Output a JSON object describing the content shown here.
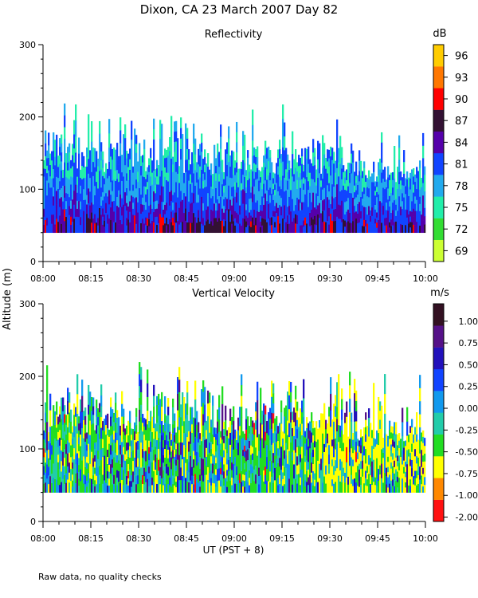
{
  "title": "Dixon, CA 23 March 2007  Day  82",
  "footer_note": "Raw data, no quality checks",
  "shared_ylabel": "Altitude (m)",
  "shared_xlabel": "UT  (PST + 8)",
  "chart_data": [
    {
      "type": "heatmap",
      "title": "Reflectivity",
      "colorbar_unit": "dB",
      "colorbar_labels": [
        "69",
        "72",
        "75",
        "78",
        "81",
        "84",
        "87",
        "90",
        "93",
        "96"
      ],
      "colorbar_colors": [
        "#ccff33",
        "#33dd33",
        "#22eeaa",
        "#22aaee",
        "#1144ff",
        "#5500aa",
        "#331133",
        "#ff0000",
        "#ff7700",
        "#ffcc00"
      ],
      "x_ticks": [
        "08:00",
        "08:15",
        "08:30",
        "08:45",
        "09:00",
        "09:15",
        "09:30",
        "09:45",
        "10:00"
      ],
      "xlim": [
        "08:00",
        "10:00"
      ],
      "y_ticks": [
        "0",
        "100",
        "200",
        "300"
      ],
      "ylim": [
        0,
        300
      ],
      "data_floor_m": 40,
      "typical_echo_top_m": [
        120,
        160
      ],
      "max_echo_top_m": 220
    },
    {
      "type": "heatmap",
      "title": "Vertical Velocity",
      "colorbar_unit": "m/s",
      "colorbar_labels": [
        "1.00",
        "0.75",
        "0.50",
        "0.25",
        "0.00",
        "-0.25",
        "-0.50",
        "-0.75",
        "-1.00",
        "-2.00"
      ],
      "colorbar_colors": [
        "#ff1111",
        "#ff8800",
        "#ffff00",
        "#22dd22",
        "#22ccaa",
        "#1199ee",
        "#1144ff",
        "#2211bb",
        "#551188",
        "#331122"
      ],
      "x_ticks": [
        "08:00",
        "08:15",
        "08:30",
        "08:45",
        "09:00",
        "09:15",
        "09:30",
        "09:45",
        "10:00"
      ],
      "xlim": [
        "08:00",
        "10:00"
      ],
      "y_ticks": [
        "0",
        "100",
        "200",
        "300"
      ],
      "ylim": [
        0,
        300
      ],
      "data_floor_m": 40,
      "typical_echo_top_m": [
        120,
        160
      ],
      "max_echo_top_m": 220
    }
  ]
}
